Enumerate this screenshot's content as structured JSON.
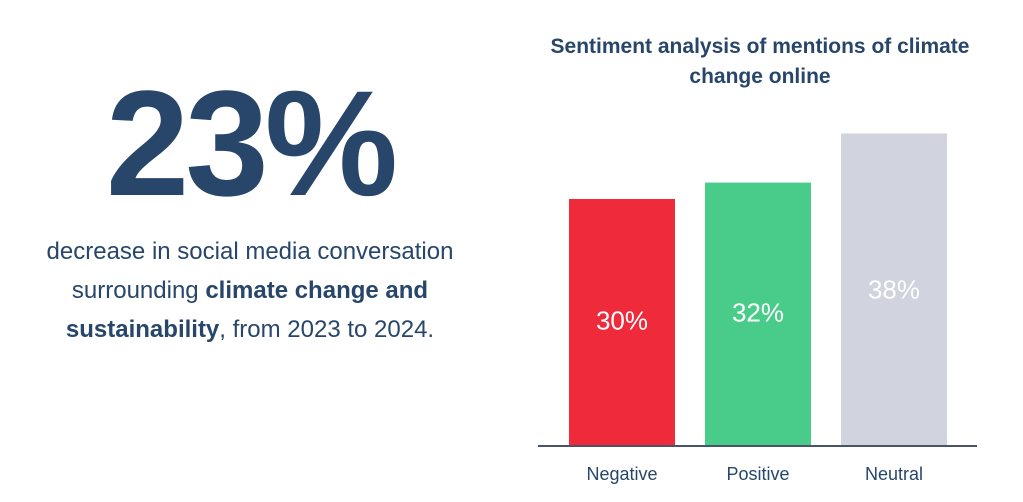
{
  "stat": {
    "value": "23%",
    "desc_pre": "decrease in social media conversation surrounding ",
    "desc_bold": "climate change and sustainability",
    "desc_post": ", from 2023 to 2024."
  },
  "chart_data": {
    "type": "bar",
    "title": "Sentiment analysis of mentions of climate change online",
    "categories": [
      "Negative",
      "Positive",
      "Neutral"
    ],
    "values": [
      30,
      32,
      38
    ],
    "value_labels": [
      "30%",
      "32%",
      "38%"
    ],
    "colors": [
      "#ee2a3b",
      "#49cc8a",
      "#d1d4de"
    ],
    "axis_color": "#4a5468",
    "xlabel": "",
    "ylabel": "",
    "grid": false,
    "legend": "none"
  }
}
